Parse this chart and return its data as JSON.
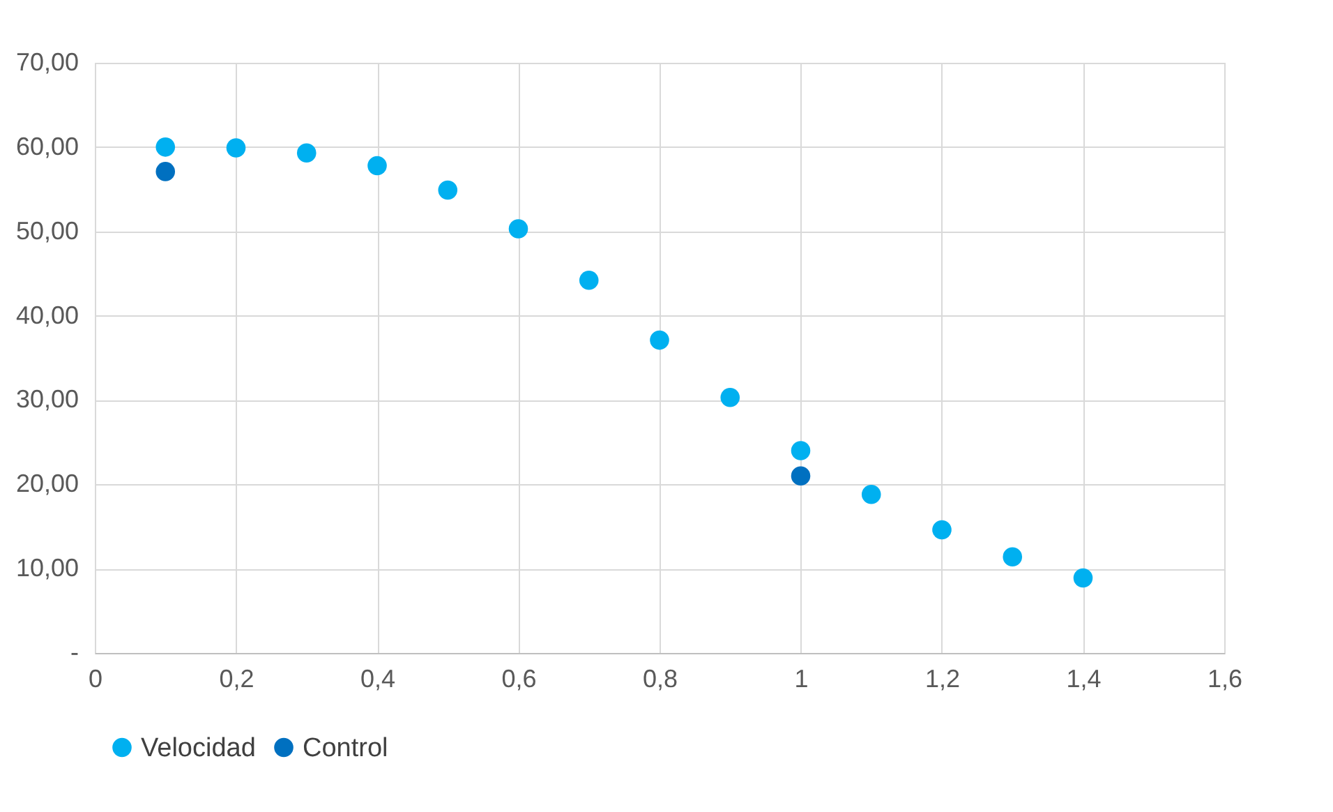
{
  "chart_data": {
    "type": "scatter",
    "series": [
      {
        "name": "Velocidad",
        "color": "#00b0f0",
        "x": [
          0.1,
          0.2,
          0.3,
          0.4,
          0.5,
          0.6,
          0.7,
          0.8,
          0.9,
          1.0,
          1.1,
          1.2,
          1.3,
          1.4
        ],
        "values": [
          60.0,
          59.9,
          59.3,
          57.8,
          54.9,
          50.3,
          44.2,
          37.1,
          30.3,
          24.0,
          18.8,
          14.6,
          11.4,
          8.9
        ]
      },
      {
        "name": "Control",
        "color": "#0070c0",
        "x": [
          0.1,
          1.0
        ],
        "values": [
          57.1,
          21.0
        ]
      }
    ],
    "xlim": [
      0,
      1.6
    ],
    "xticks": [
      0,
      {
        "value": 0.2,
        "label": "0,2"
      },
      {
        "value": 0.4,
        "label": "0,4"
      },
      {
        "value": 0.6,
        "label": "0,6"
      },
      {
        "value": 0.8,
        "label": "0,8"
      },
      1,
      {
        "value": 1.2,
        "label": "1,2"
      },
      {
        "value": 1.4,
        "label": "1,4"
      },
      {
        "value": 1.6,
        "label": "1,6"
      }
    ],
    "ylim": [
      0,
      70
    ],
    "yticks": [
      {
        "value": 0,
        "label": "-"
      },
      {
        "value": 10,
        "label": "10,00"
      },
      {
        "value": 20,
        "label": "20,00"
      },
      {
        "value": 30,
        "label": "30,00"
      },
      {
        "value": 40,
        "label": "40,00"
      },
      {
        "value": 50,
        "label": "50,00"
      },
      {
        "value": 60,
        "label": "60,00"
      },
      {
        "value": 70,
        "label": "70,00"
      }
    ],
    "grid": true,
    "legend": "bottom",
    "marker": "circle"
  }
}
